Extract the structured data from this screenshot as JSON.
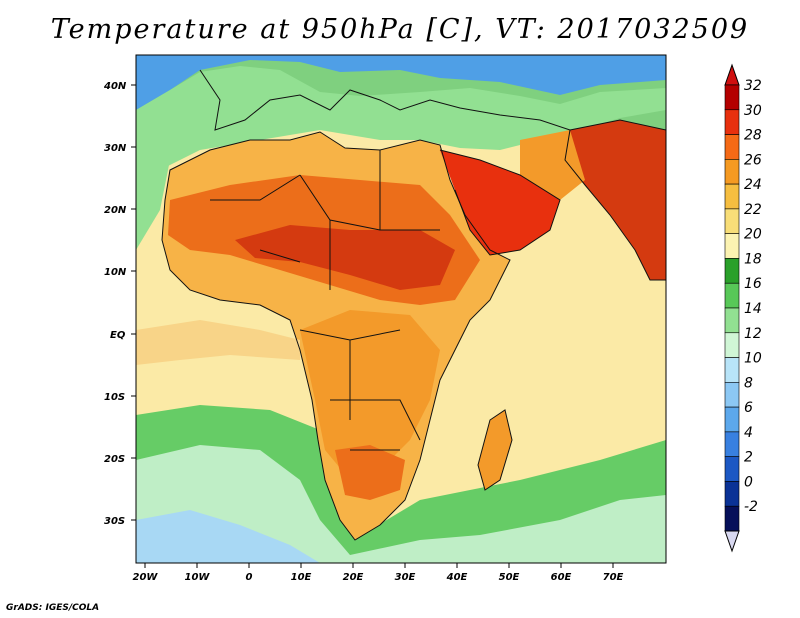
{
  "title": "Temperature at 950hPa [C], VT: 2017032509",
  "credit": "GrADS: IGES/COLA",
  "lat_labels": [
    "40N",
    "30N",
    "20N",
    "10N",
    "EQ",
    "10S",
    "20S",
    "30S"
  ],
  "lon_labels": [
    "20W",
    "10W",
    "0",
    "10E",
    "20E",
    "30E",
    "40E",
    "50E",
    "60E",
    "70E"
  ],
  "colorbar": {
    "labels": [
      "32",
      "30",
      "28",
      "26",
      "24",
      "22",
      "20",
      "18",
      "16",
      "14",
      "12",
      "10",
      "8",
      "6",
      "4",
      "2",
      "0",
      "-2"
    ],
    "colors": [
      "#b40000",
      "#e8300e",
      "#f56a16",
      "#f59a22",
      "#f6be40",
      "#f8de78",
      "#fcf3b2",
      "#2aa02a",
      "#58c858",
      "#92e092",
      "#d0f6d6",
      "#b8e4f8",
      "#8cc8f4",
      "#5ca8ec",
      "#3880e0",
      "#1c58c4",
      "#0a3296",
      "#06105a"
    ],
    "top_arrow_color": "#d01010",
    "bottom_arrow_color": "#d8d8f0"
  },
  "map": {
    "ocean_color": "#fbeaa6",
    "south_ocean_colors": [
      "#66cc66",
      "#bfeec6",
      "#a8d8f4"
    ],
    "land_hot_colors": [
      "#f7b347",
      "#f39a2a",
      "#ec6e1a",
      "#d43a10"
    ]
  }
}
